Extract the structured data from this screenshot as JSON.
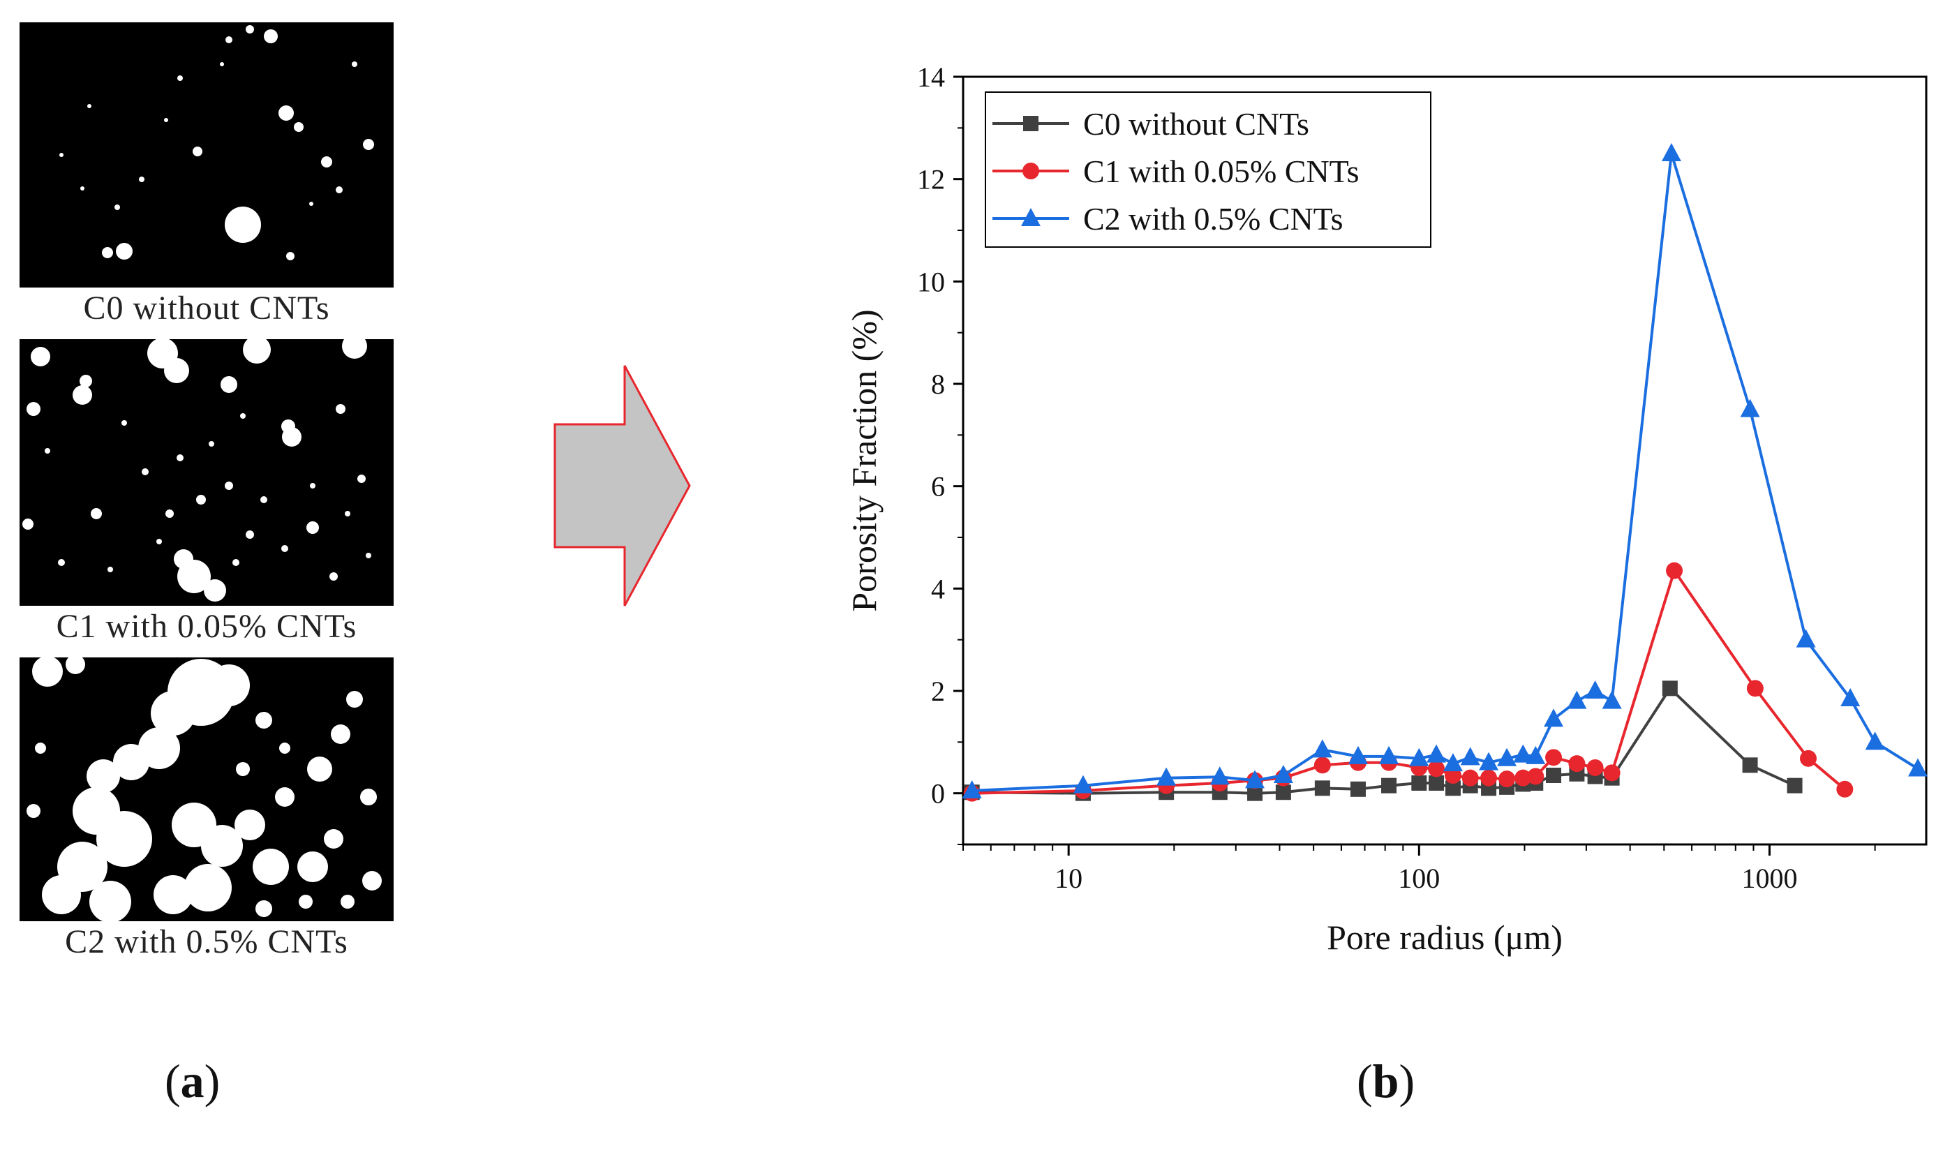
{
  "panels": {
    "a_label": "a",
    "b_label": "b"
  },
  "micrographs": [
    {
      "caption": "C0 without CNTs"
    },
    {
      "caption": "C1 with 0.05% CNTs"
    },
    {
      "caption": "C2 with 0.5% CNTs"
    }
  ],
  "colors": {
    "C0": "#404040",
    "C1": "#e8262d",
    "C2": "#1a6ee0",
    "arrow_fill": "#c4c4c4",
    "arrow_stroke": "#e8262d"
  },
  "chart_data": {
    "type": "line",
    "title": "",
    "xlabel": "Pore radius (μm)",
    "ylabel": "Porosity Fraction (%)",
    "xscale": "log",
    "xlim": [
      5,
      2800
    ],
    "ylim": [
      -1,
      14
    ],
    "x_ticks": [
      10,
      100,
      1000
    ],
    "x_tick_labels": [
      "10",
      "100",
      "1000"
    ],
    "y_ticks": [
      0,
      2,
      4,
      6,
      8,
      10,
      12,
      14
    ],
    "y_tick_labels": [
      "0",
      "2",
      "4",
      "6",
      "8",
      "10",
      "12",
      "14"
    ],
    "legend_position": "top-left",
    "series": [
      {
        "name": "C0 without CNTs",
        "marker": "square",
        "color": "#404040",
        "x": [
          5.3,
          11,
          19,
          27,
          34,
          41,
          53,
          67,
          82,
          100,
          112,
          125,
          140,
          158,
          178,
          198,
          215,
          242,
          282,
          318,
          355,
          520,
          880,
          1180
        ],
        "y": [
          0.02,
          0.0,
          0.02,
          0.02,
          0.0,
          0.02,
          0.1,
          0.08,
          0.15,
          0.2,
          0.2,
          0.1,
          0.15,
          0.1,
          0.12,
          0.18,
          0.2,
          0.35,
          0.38,
          0.33,
          0.3,
          2.05,
          0.55,
          0.15
        ]
      },
      {
        "name": "C1 with 0.05% CNTs",
        "marker": "circle",
        "color": "#e8262d",
        "x": [
          5.3,
          11,
          19,
          27,
          34,
          41,
          53,
          67,
          82,
          100,
          112,
          125,
          140,
          158,
          178,
          198,
          215,
          242,
          282,
          318,
          355,
          535,
          910,
          1290,
          1640
        ],
        "y": [
          0.0,
          0.05,
          0.15,
          0.2,
          0.25,
          0.3,
          0.55,
          0.6,
          0.6,
          0.5,
          0.48,
          0.35,
          0.3,
          0.3,
          0.28,
          0.3,
          0.33,
          0.7,
          0.58,
          0.5,
          0.4,
          4.35,
          2.05,
          0.68,
          0.08
        ]
      },
      {
        "name": "C2 with 0.5% CNTs",
        "marker": "triangle",
        "color": "#1a6ee0",
        "x": [
          5.3,
          11,
          19,
          27,
          34,
          41,
          53,
          67,
          82,
          100,
          112,
          125,
          140,
          158,
          178,
          198,
          215,
          242,
          282,
          318,
          355,
          525,
          880,
          1270,
          1700,
          2000,
          2650
        ],
        "y": [
          0.05,
          0.15,
          0.3,
          0.32,
          0.25,
          0.35,
          0.85,
          0.72,
          0.72,
          0.68,
          0.75,
          0.58,
          0.7,
          0.6,
          0.68,
          0.75,
          0.72,
          1.45,
          1.8,
          2.0,
          1.8,
          12.5,
          7.5,
          3.0,
          1.85,
          1.0,
          0.48
        ]
      }
    ]
  }
}
